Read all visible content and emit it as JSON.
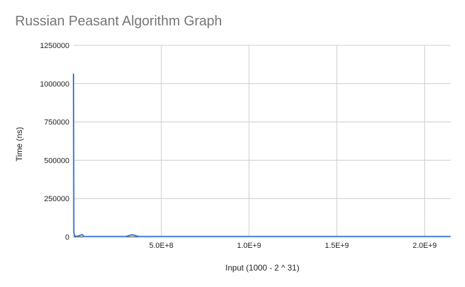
{
  "chart_data": {
    "type": "line",
    "title": "Russian Peasant Algorithm Graph",
    "xlabel": "Input (1000 - 2 ^ 31)",
    "ylabel": "Time (ns)",
    "xlim": [
      0,
      2147483648
    ],
    "ylim": [
      0,
      1250000
    ],
    "x_ticks": [
      500000000,
      1000000000,
      1500000000,
      2000000000
    ],
    "x_tick_labels": [
      "5.0E+8",
      "1.0E+9",
      "1.5E+9",
      "2.0E+9"
    ],
    "y_ticks": [
      0,
      250000,
      500000,
      750000,
      1000000,
      1250000
    ],
    "y_tick_labels": [
      "0",
      "250000",
      "500000",
      "750000",
      "1000000",
      "1250000"
    ],
    "grid": true,
    "series": [
      {
        "color": "#3c78d8",
        "points": [
          [
            1000,
            1065000
          ],
          [
            2000000,
            30000
          ],
          [
            5000000,
            8000
          ],
          [
            20000000,
            3000
          ],
          [
            50000000,
            15000
          ],
          [
            60000000,
            2000
          ],
          [
            150000000,
            2500
          ],
          [
            250000000,
            2500
          ],
          [
            300000000,
            3000
          ],
          [
            320000000,
            10000
          ],
          [
            335000000,
            14000
          ],
          [
            350000000,
            9000
          ],
          [
            370000000,
            3000
          ],
          [
            450000000,
            2500
          ],
          [
            700000000,
            2000
          ],
          [
            1000000000,
            2000
          ],
          [
            1500000000,
            2000
          ],
          [
            2000000000,
            2000
          ],
          [
            2147483648,
            2000
          ]
        ]
      }
    ]
  }
}
